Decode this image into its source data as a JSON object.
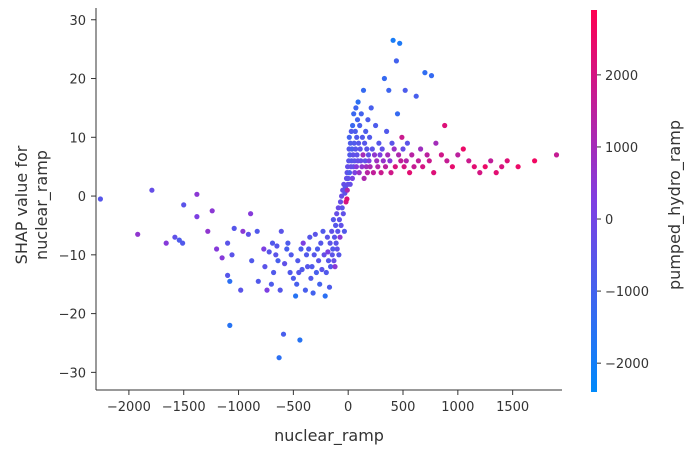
{
  "chart_data": {
    "type": "scatter",
    "xlabel": "nuclear_ramp",
    "ylabel": [
      "SHAP value for",
      "nuclear_ramp"
    ],
    "color_label": "pumped_hydro_ramp",
    "xlim": [
      -2300,
      1950
    ],
    "ylim": [
      -33,
      32
    ],
    "x_ticks": [
      -2000,
      -1500,
      -1000,
      -500,
      0,
      500,
      1000,
      1500
    ],
    "x_tick_labels": [
      "−2000",
      "−1500",
      "−1000",
      "−500",
      "0",
      "500",
      "1000",
      "1500"
    ],
    "y_ticks": [
      -30,
      -20,
      -10,
      0,
      10,
      20,
      30
    ],
    "y_tick_labels": [
      "−30",
      "−20",
      "−10",
      "0",
      "10",
      "20",
      "30"
    ],
    "color_range": [
      -2400,
      2900
    ],
    "color_ticks": [
      -2000,
      -1000,
      0,
      1000,
      2000
    ],
    "color_tick_labels": [
      "−2000",
      "−1000",
      "0",
      "1000",
      "2000"
    ],
    "colormap": [
      "#008afb",
      "#7f3ee2",
      "#ff0051"
    ],
    "grid": false,
    "points": [
      [
        -2260,
        -0.5,
        -600
      ],
      [
        -1920,
        -6.5,
        600
      ],
      [
        -1790,
        1.0,
        -300
      ],
      [
        -1660,
        -8,
        400
      ],
      [
        -1580,
        -7,
        -400
      ],
      [
        -1540,
        -7.5,
        -800
      ],
      [
        -1510,
        -8,
        -700
      ],
      [
        -1500,
        -1.5,
        -500
      ],
      [
        -1380,
        0.3,
        500
      ],
      [
        -1380,
        -3.5,
        200
      ],
      [
        -1280,
        -6,
        600
      ],
      [
        -1240,
        -2.5,
        500
      ],
      [
        -1200,
        -9,
        400
      ],
      [
        -1150,
        -10.5,
        400
      ],
      [
        -1100,
        -8,
        -500
      ],
      [
        -1100,
        -13.5,
        -600
      ],
      [
        -1080,
        -14.5,
        -1500
      ],
      [
        -1080,
        -22,
        -1600
      ],
      [
        -1060,
        -10,
        -500
      ],
      [
        -1040,
        -5.5,
        -600
      ],
      [
        -980,
        -16,
        -500
      ],
      [
        -960,
        -6,
        500
      ],
      [
        -910,
        -6.5,
        -400
      ],
      [
        -890,
        -3,
        400
      ],
      [
        -880,
        -11,
        -700
      ],
      [
        -830,
        -6,
        -700
      ],
      [
        -820,
        -14.5,
        -700
      ],
      [
        -770,
        -9,
        200
      ],
      [
        -760,
        -12,
        -500
      ],
      [
        -740,
        -16,
        200
      ],
      [
        -720,
        -9.5,
        -600
      ],
      [
        -700,
        -15,
        -800
      ],
      [
        -690,
        -8,
        -700
      ],
      [
        -680,
        -13,
        -700
      ],
      [
        -660,
        -10,
        -500
      ],
      [
        -650,
        -8.5,
        -600
      ],
      [
        -640,
        -11,
        -900
      ],
      [
        -630,
        -27.5,
        -1500
      ],
      [
        -620,
        -16,
        -600
      ],
      [
        -610,
        -6,
        -500
      ],
      [
        -590,
        -23.5,
        -900
      ],
      [
        -580,
        -11.5,
        -400
      ],
      [
        -560,
        -9,
        -900
      ],
      [
        -550,
        -8,
        -800
      ],
      [
        -530,
        -13,
        -700
      ],
      [
        -520,
        -10,
        -700
      ],
      [
        -500,
        -14,
        -800
      ],
      [
        -480,
        -17,
        -1600
      ],
      [
        -470,
        -15,
        -900
      ],
      [
        -460,
        -11,
        -700
      ],
      [
        -450,
        -13,
        -600
      ],
      [
        -440,
        -24.5,
        -1600
      ],
      [
        -430,
        -9,
        -800
      ],
      [
        -420,
        -12.5,
        -700
      ],
      [
        -410,
        -8,
        200
      ],
      [
        -390,
        -16,
        -900
      ],
      [
        -380,
        -10,
        -700
      ],
      [
        -370,
        -12,
        -600
      ],
      [
        -360,
        -9,
        -700
      ],
      [
        -350,
        -7,
        -600
      ],
      [
        -340,
        -14,
        -700
      ],
      [
        -330,
        -12,
        -700
      ],
      [
        -320,
        -16.5,
        -1000
      ],
      [
        -310,
        -10,
        -600
      ],
      [
        -300,
        -6.5,
        -500
      ],
      [
        -290,
        -13,
        -900
      ],
      [
        -280,
        -9,
        -800
      ],
      [
        -270,
        -11,
        -500
      ],
      [
        -260,
        -15,
        -1000
      ],
      [
        -250,
        -8,
        -600
      ],
      [
        -240,
        -12.5,
        -500
      ],
      [
        -230,
        -6,
        -700
      ],
      [
        -220,
        -10,
        -300
      ],
      [
        -210,
        -17,
        -1500
      ],
      [
        -200,
        -13,
        -700
      ],
      [
        -190,
        -7,
        -500
      ],
      [
        -185,
        -9.5,
        200
      ],
      [
        -180,
        -11,
        -600
      ],
      [
        -170,
        -15.5,
        -800
      ],
      [
        -165,
        -8,
        -500
      ],
      [
        -160,
        -12,
        -700
      ],
      [
        -150,
        -6,
        -400
      ],
      [
        -145,
        -10,
        -500
      ],
      [
        -140,
        -9,
        -700
      ],
      [
        -135,
        -4,
        -600
      ],
      [
        -130,
        -11,
        -300
      ],
      [
        -125,
        -7,
        -500
      ],
      [
        -120,
        -12,
        500
      ],
      [
        -115,
        -5,
        -600
      ],
      [
        -110,
        -8,
        -500
      ],
      [
        -105,
        -3,
        -300
      ],
      [
        -100,
        -9,
        -400
      ],
      [
        -95,
        -6,
        -500
      ],
      [
        -90,
        -2,
        -200
      ],
      [
        -85,
        -10,
        -600
      ],
      [
        -80,
        -4,
        -400
      ],
      [
        -75,
        -7,
        500
      ],
      [
        -70,
        -1,
        -300
      ],
      [
        -65,
        -5,
        -400
      ],
      [
        -60,
        0,
        -200
      ],
      [
        -55,
        -2,
        -500
      ],
      [
        -50,
        1,
        -300
      ],
      [
        -45,
        -3,
        -400
      ],
      [
        -40,
        2,
        -300
      ],
      [
        -35,
        -6,
        -700
      ],
      [
        -30,
        0.5,
        -400
      ],
      [
        -25,
        1.5,
        -500
      ],
      [
        -20,
        -1,
        2000
      ],
      [
        -15,
        3,
        -300
      ],
      [
        -12,
        -0.5,
        2200
      ],
      [
        -10,
        4,
        -400
      ],
      [
        -8,
        1,
        1200
      ],
      [
        -5,
        5,
        -300
      ],
      [
        -3,
        2,
        -300
      ],
      [
        0,
        3,
        -400
      ],
      [
        5,
        6,
        -500
      ],
      [
        8,
        8,
        -600
      ],
      [
        10,
        10,
        -1000
      ],
      [
        12,
        4,
        -800
      ],
      [
        15,
        7,
        -700
      ],
      [
        18,
        2,
        -300
      ],
      [
        20,
        9,
        -800
      ],
      [
        25,
        5,
        -200
      ],
      [
        28,
        11,
        -700
      ],
      [
        30,
        6,
        -600
      ],
      [
        35,
        8,
        -900
      ],
      [
        38,
        3,
        100
      ],
      [
        40,
        12,
        -1200
      ],
      [
        45,
        7,
        -400
      ],
      [
        48,
        5,
        -300
      ],
      [
        50,
        14,
        -1200
      ],
      [
        55,
        9,
        -700
      ],
      [
        58,
        6,
        -500
      ],
      [
        60,
        4,
        200
      ],
      [
        65,
        11,
        -800
      ],
      [
        68,
        8,
        -600
      ],
      [
        70,
        15,
        -1100
      ],
      [
        75,
        5,
        400
      ],
      [
        78,
        10,
        -700
      ],
      [
        80,
        7,
        -400
      ],
      [
        85,
        13,
        -1000
      ],
      [
        88,
        6,
        -300
      ],
      [
        90,
        16,
        -1500
      ],
      [
        95,
        9,
        -600
      ],
      [
        100,
        4,
        800
      ],
      [
        105,
        12,
        -900
      ],
      [
        110,
        8,
        -500
      ],
      [
        115,
        6,
        -300
      ],
      [
        120,
        14,
        -1000
      ],
      [
        125,
        5,
        600
      ],
      [
        130,
        10,
        -700
      ],
      [
        135,
        7,
        1000
      ],
      [
        140,
        18,
        -1300
      ],
      [
        145,
        3,
        1200
      ],
      [
        150,
        9,
        -600
      ],
      [
        155,
        6,
        -400
      ],
      [
        160,
        11,
        -800
      ],
      [
        165,
        5,
        900
      ],
      [
        170,
        8,
        -500
      ],
      [
        175,
        4,
        1400
      ],
      [
        180,
        13,
        -800
      ],
      [
        185,
        7,
        -400
      ],
      [
        190,
        6,
        200
      ],
      [
        195,
        10,
        -700
      ],
      [
        200,
        5,
        1100
      ],
      [
        210,
        15,
        -900
      ],
      [
        220,
        8,
        -500
      ],
      [
        230,
        4,
        1600
      ],
      [
        240,
        7,
        600
      ],
      [
        250,
        12,
        -800
      ],
      [
        260,
        6,
        900
      ],
      [
        270,
        5,
        1300
      ],
      [
        280,
        9,
        -600
      ],
      [
        290,
        7,
        200
      ],
      [
        300,
        4,
        1800
      ],
      [
        310,
        8,
        -400
      ],
      [
        320,
        6,
        700
      ],
      [
        330,
        20,
        -1300
      ],
      [
        340,
        5,
        1500
      ],
      [
        350,
        11,
        -700
      ],
      [
        360,
        7,
        1000
      ],
      [
        370,
        18,
        -1100
      ],
      [
        380,
        6,
        400
      ],
      [
        390,
        4,
        1900
      ],
      [
        400,
        9,
        -500
      ],
      [
        410,
        26.5,
        -1900
      ],
      [
        420,
        8,
        800
      ],
      [
        430,
        5,
        2100
      ],
      [
        440,
        23,
        -1000
      ],
      [
        450,
        14,
        -1300
      ],
      [
        460,
        7,
        1200
      ],
      [
        470,
        26,
        -1800
      ],
      [
        480,
        6,
        1600
      ],
      [
        490,
        10,
        1800
      ],
      [
        500,
        8,
        -300
      ],
      [
        510,
        5,
        2000
      ],
      [
        520,
        18,
        -800
      ],
      [
        530,
        6,
        1300
      ],
      [
        540,
        9,
        -500
      ],
      [
        560,
        4,
        2300
      ],
      [
        580,
        7,
        1400
      ],
      [
        600,
        5,
        1700
      ],
      [
        620,
        17,
        -900
      ],
      [
        640,
        6,
        1600
      ],
      [
        660,
        8,
        900
      ],
      [
        680,
        5,
        2000
      ],
      [
        700,
        21,
        -1400
      ],
      [
        720,
        7,
        1500
      ],
      [
        740,
        6,
        1800
      ],
      [
        760,
        20.5,
        -1300
      ],
      [
        780,
        4,
        2200
      ],
      [
        800,
        9,
        1000
      ],
      [
        850,
        7,
        1900
      ],
      [
        880,
        12,
        2200
      ],
      [
        900,
        6,
        1700
      ],
      [
        950,
        5,
        2400
      ],
      [
        1000,
        7,
        1500
      ],
      [
        1050,
        8,
        2500
      ],
      [
        1100,
        6,
        1800
      ],
      [
        1150,
        5,
        2300
      ],
      [
        1200,
        4,
        2000
      ],
      [
        1250,
        5,
        2500
      ],
      [
        1300,
        6,
        1600
      ],
      [
        1350,
        4,
        2300
      ],
      [
        1400,
        5,
        2100
      ],
      [
        1450,
        6,
        2200
      ],
      [
        1550,
        5,
        2500
      ],
      [
        1700,
        6,
        2600
      ],
      [
        1900,
        7,
        1700
      ]
    ]
  }
}
